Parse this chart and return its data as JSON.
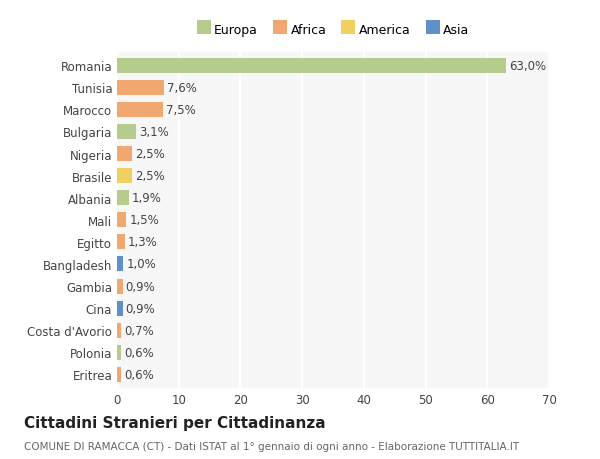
{
  "countries": [
    "Romania",
    "Tunisia",
    "Marocco",
    "Bulgaria",
    "Nigeria",
    "Brasile",
    "Albania",
    "Mali",
    "Egitto",
    "Bangladesh",
    "Gambia",
    "Cina",
    "Costa d'Avorio",
    "Polonia",
    "Eritrea"
  ],
  "values": [
    63.0,
    7.6,
    7.5,
    3.1,
    2.5,
    2.5,
    1.9,
    1.5,
    1.3,
    1.0,
    0.9,
    0.9,
    0.7,
    0.6,
    0.6
  ],
  "continents": [
    "Europa",
    "Africa",
    "Africa",
    "Europa",
    "Africa",
    "America",
    "Europa",
    "Africa",
    "Africa",
    "Asia",
    "Africa",
    "Asia",
    "Africa",
    "Europa",
    "Africa"
  ],
  "continent_colors": {
    "Europa": "#b5cc8e",
    "Africa": "#f0a870",
    "America": "#f0d060",
    "Asia": "#6090c8"
  },
  "legend_order": [
    "Europa",
    "Africa",
    "America",
    "Asia"
  ],
  "title": "Cittadini Stranieri per Cittadinanza",
  "subtitle": "COMUNE DI RAMACCA (CT) - Dati ISTAT al 1° gennaio di ogni anno - Elaborazione TUTTITALIA.IT",
  "xlim": [
    0,
    70
  ],
  "xticks": [
    0,
    10,
    20,
    30,
    40,
    50,
    60,
    70
  ],
  "chart_bg_color": "#f7f7f7",
  "grid_color": "#ffffff",
  "bar_height": 0.68,
  "label_fontsize": 8.5,
  "title_fontsize": 11,
  "subtitle_fontsize": 7.5,
  "legend_fontsize": 9,
  "tick_fontsize": 8.5
}
